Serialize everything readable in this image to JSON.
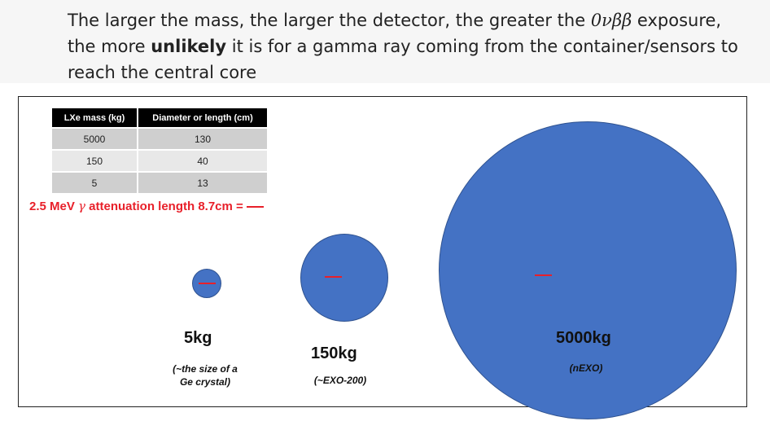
{
  "header": {
    "line1_pre": "The larger the mass, the larger the detector, the greater the ",
    "line1_math": "0νββ",
    "line1_post": " exposure,",
    "line2_pre": "the more ",
    "line2_bold": "unlikely",
    "line2_post": " it is for a gamma ray coming from the container/sensors to",
    "line3": "reach the central core"
  },
  "table": {
    "headers": [
      "LXe mass (kg)",
      "Diameter or length (cm)"
    ],
    "rows": [
      [
        "5000",
        "130"
      ],
      [
        "150",
        "40"
      ],
      [
        "5",
        "13"
      ]
    ]
  },
  "attenuation": {
    "pre": "2.5 MeV ",
    "gamma": "γ",
    "post": " attenuation length 8.7cm ="
  },
  "detectors": [
    {
      "mass": "5kg",
      "note_line1": "(~the size of a",
      "note_line2": "Ge crystal)"
    },
    {
      "mass": "150kg",
      "note_line1": "(~EXO-200)",
      "note_line2": ""
    },
    {
      "mass": "5000kg",
      "note_line1": "(nEXO)",
      "note_line2": ""
    }
  ],
  "colors": {
    "circle_fill": "#4472c4",
    "scale_mark": "#e8202a"
  }
}
